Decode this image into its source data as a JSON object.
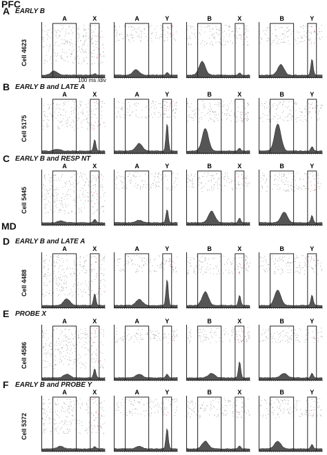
{
  "regions": {
    "pfc": "PFC",
    "md": "MD"
  },
  "scale_note": "100 ms /div",
  "colors": {
    "psth_fill": "#555555",
    "raster_dot": "#9a9a9a",
    "red_raster": "#d94a4a",
    "axis": "#222222"
  },
  "rows": [
    {
      "letter": "A",
      "condition": "EARLY B",
      "cell": "Cell 4623",
      "panels": [
        {
          "cue": "A",
          "probe": "X",
          "peak": 0.14,
          "peak_pos": 0.2,
          "probe_peak": 0.05,
          "raster_density": 0.8
        },
        {
          "cue": "A",
          "probe": "Y",
          "peak": 0.18,
          "peak_pos": 0.35,
          "probe_peak": 0.1,
          "raster_density": 0.25
        },
        {
          "cue": "B",
          "probe": "X",
          "peak": 0.45,
          "peak_pos": 0.25,
          "probe_peak": 0.08,
          "raster_density": 0.35
        },
        {
          "cue": "B",
          "probe": "Y",
          "peak": 0.35,
          "peak_pos": 0.35,
          "probe_peak": 0.55,
          "raster_density": 0.3
        }
      ]
    },
    {
      "letter": "B",
      "condition": "EARLY B and LATE A",
      "cell": "Cell 5175",
      "panels": [
        {
          "cue": "A",
          "probe": "X",
          "peak": 0.06,
          "peak_pos": 0.25,
          "probe_peak": 0.4,
          "raster_density": 0.55
        },
        {
          "cue": "A",
          "probe": "Y",
          "peak": 0.25,
          "peak_pos": 0.4,
          "probe_peak": 0.95,
          "raster_density": 0.25
        },
        {
          "cue": "B",
          "probe": "X",
          "peak": 0.75,
          "peak_pos": 0.3,
          "probe_peak": 0.1,
          "raster_density": 0.35
        },
        {
          "cue": "B",
          "probe": "Y",
          "peak": 0.9,
          "peak_pos": 0.3,
          "probe_peak": 0.15,
          "raster_density": 0.35
        }
      ]
    },
    {
      "letter": "C",
      "condition": "EARLY B and RESP NT",
      "cell": "Cell 5445",
      "panels": [
        {
          "cue": "A",
          "probe": "X",
          "peak": 0.06,
          "peak_pos": 0.3,
          "probe_peak": 0.12,
          "raster_density": 0.85
        },
        {
          "cue": "A",
          "probe": "Y",
          "peak": 0.08,
          "peak_pos": 0.4,
          "probe_peak": 0.45,
          "raster_density": 0.25
        },
        {
          "cue": "B",
          "probe": "X",
          "peak": 0.38,
          "peak_pos": 0.4,
          "probe_peak": 0.15,
          "raster_density": 0.3
        },
        {
          "cue": "B",
          "probe": "Y",
          "peak": 0.35,
          "peak_pos": 0.4,
          "probe_peak": 0.25,
          "raster_density": 0.3
        }
      ]
    },
    {
      "letter": "D",
      "condition": "EARLY B and LATE A",
      "cell": "Cell 4488",
      "panels": [
        {
          "cue": "A",
          "probe": "X",
          "peak": 0.22,
          "peak_pos": 0.4,
          "probe_peak": 0.4,
          "raster_density": 0.85
        },
        {
          "cue": "A",
          "probe": "Y",
          "peak": 0.2,
          "peak_pos": 0.4,
          "probe_peak": 0.9,
          "raster_density": 0.25
        },
        {
          "cue": "B",
          "probe": "X",
          "peak": 0.45,
          "peak_pos": 0.3,
          "probe_peak": 0.35,
          "raster_density": 0.3
        },
        {
          "cue": "B",
          "probe": "Y",
          "peak": 0.5,
          "peak_pos": 0.3,
          "probe_peak": 0.35,
          "raster_density": 0.3
        }
      ]
    },
    {
      "letter": "E",
      "condition": "PROBE X",
      "cell": "Cell 4586",
      "panels": [
        {
          "cue": "A",
          "probe": "X",
          "peak": 0.12,
          "peak_pos": 0.4,
          "probe_peak": 0.3,
          "raster_density": 0.85
        },
        {
          "cue": "A",
          "probe": "Y",
          "peak": 0.12,
          "peak_pos": 0.4,
          "probe_peak": 0.12,
          "raster_density": 0.2
        },
        {
          "cue": "B",
          "probe": "X",
          "peak": 0.15,
          "peak_pos": 0.4,
          "probe_peak": 0.55,
          "raster_density": 0.2
        },
        {
          "cue": "B",
          "probe": "Y",
          "peak": 0.15,
          "peak_pos": 0.4,
          "probe_peak": 0.15,
          "raster_density": 0.2
        }
      ]
    },
    {
      "letter": "F",
      "condition": "EARLY B and PROBE Y",
      "cell": "Cell 5372",
      "panels": [
        {
          "cue": "A",
          "probe": "X",
          "peak": 0.08,
          "peak_pos": 0.3,
          "probe_peak": 0.08,
          "raster_density": 0.7
        },
        {
          "cue": "A",
          "probe": "Y",
          "peak": 0.08,
          "peak_pos": 0.4,
          "probe_peak": 0.7,
          "raster_density": 0.25
        },
        {
          "cue": "B",
          "probe": "X",
          "peak": 0.25,
          "peak_pos": 0.3,
          "probe_peak": 0.1,
          "raster_density": 0.3
        },
        {
          "cue": "B",
          "probe": "Y",
          "peak": 0.25,
          "peak_pos": 0.3,
          "probe_peak": 0.15,
          "raster_density": 0.3
        }
      ]
    }
  ]
}
